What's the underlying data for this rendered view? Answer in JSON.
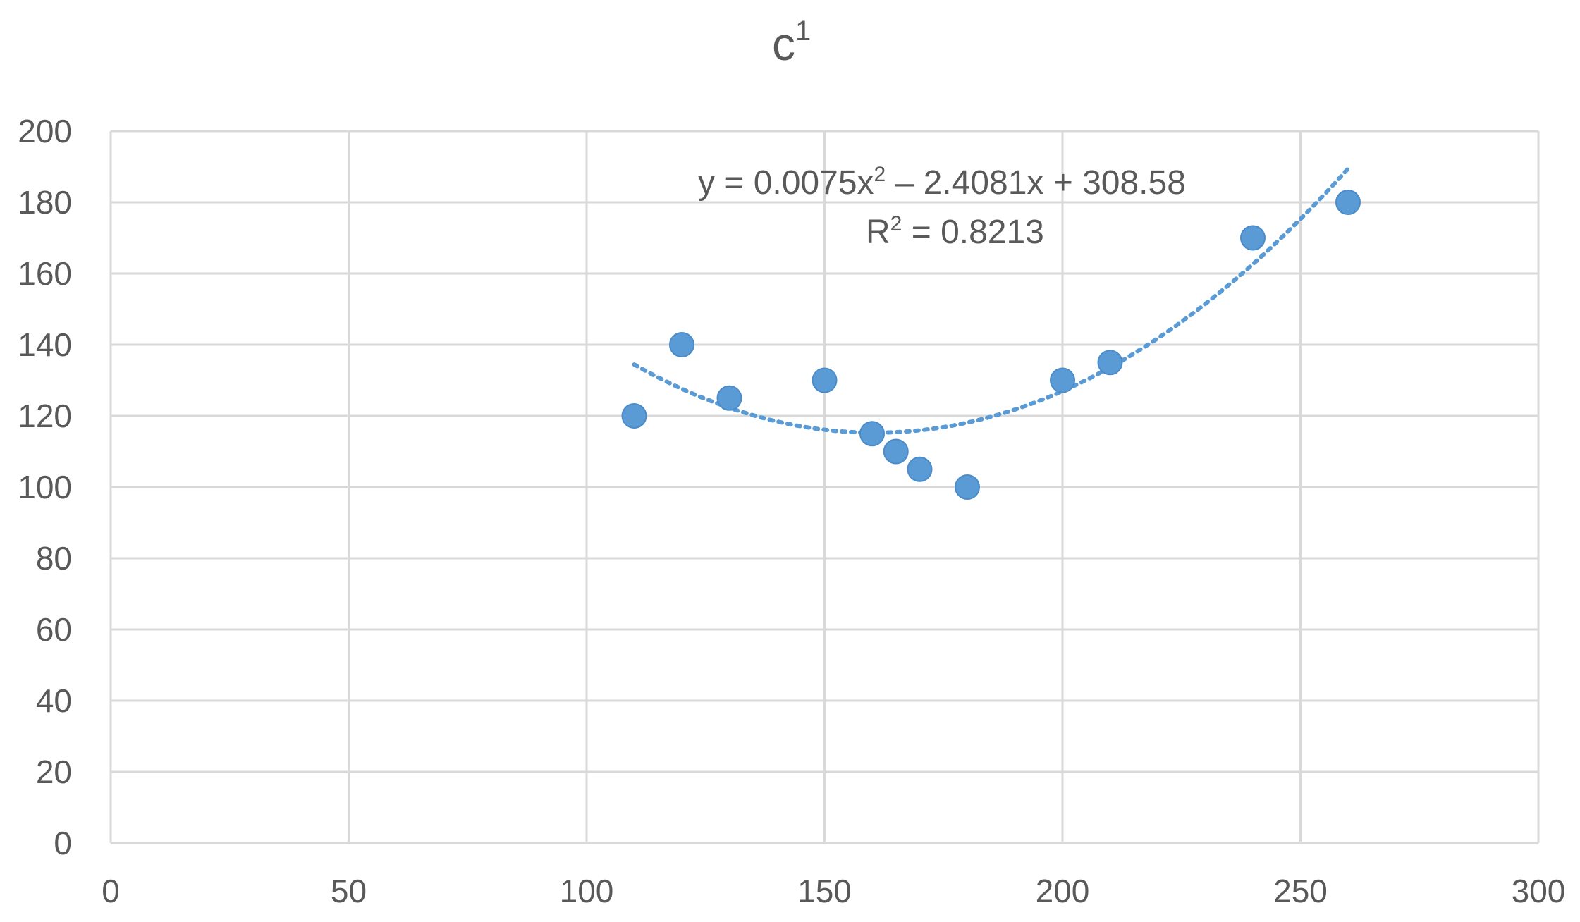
{
  "chart_data": {
    "type": "scatter",
    "title": "c",
    "title_superscript": "1",
    "xlim": [
      0,
      300
    ],
    "ylim": [
      0,
      200
    ],
    "x_ticks": [
      0,
      50,
      100,
      150,
      200,
      250,
      300
    ],
    "y_ticks": [
      0,
      20,
      40,
      60,
      80,
      100,
      120,
      140,
      160,
      180,
      200
    ],
    "grid": true,
    "marker_color": "#5B9BD5",
    "trendline_color": "#5B9BD5",
    "points": [
      {
        "x": 110,
        "y": 120
      },
      {
        "x": 120,
        "y": 140
      },
      {
        "x": 130,
        "y": 125
      },
      {
        "x": 150,
        "y": 130
      },
      {
        "x": 160,
        "y": 115
      },
      {
        "x": 165,
        "y": 110
      },
      {
        "x": 170,
        "y": 105
      },
      {
        "x": 180,
        "y": 100
      },
      {
        "x": 200,
        "y": 130
      },
      {
        "x": 210,
        "y": 135
      },
      {
        "x": 240,
        "y": 170
      },
      {
        "x": 260,
        "y": 180
      }
    ],
    "trendline": {
      "type": "polynomial",
      "coefficients": [
        0.0075,
        -2.4081,
        308.58
      ],
      "x_range": [
        110,
        260
      ],
      "equation_prefix": "y = 0.0075x",
      "equation_exponent": "2",
      "equation_suffix": " – 2.4081x + 308.58",
      "r2_prefix": "R",
      "r2_exponent": "2",
      "r2_suffix": " = 0.8213"
    }
  }
}
